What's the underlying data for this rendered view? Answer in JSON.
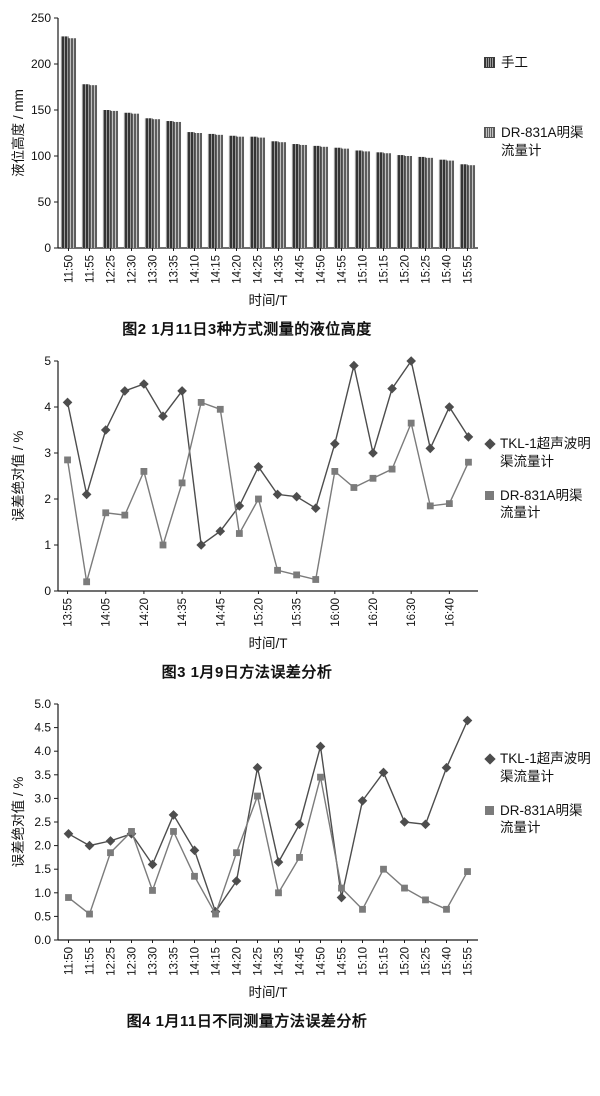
{
  "chart_data": [
    {
      "type": "bar",
      "caption": "图2  1月11日3种方式测量的液位高度",
      "ylabel": "液位高度 / mm",
      "xlabel": "时间/T",
      "ylim": [
        0,
        250
      ],
      "yticks": [
        0,
        50,
        100,
        150,
        200,
        250
      ],
      "ytick_labels": [
        "0",
        "50",
        "100",
        "150",
        "200",
        "250"
      ],
      "grid": false,
      "legend_position": "right",
      "categories": [
        "11:50",
        "11:55",
        "12:25",
        "12:30",
        "13:30",
        "13:35",
        "14:10",
        "14:15",
        "14:20",
        "14:25",
        "14:35",
        "14:45",
        "14:50",
        "14:55",
        "15:10",
        "15:15",
        "15:20",
        "15:25",
        "15:40",
        "15:55"
      ],
      "series": [
        {
          "name": "手工",
          "marker": "hatch-dark",
          "values": [
            230,
            178,
            150,
            147,
            141,
            138,
            126,
            124,
            122,
            121,
            116,
            113,
            111,
            109,
            106,
            104,
            101,
            99,
            96,
            91
          ]
        },
        {
          "name": "DR-831A明渠流量计",
          "marker": "hatch-light",
          "values": [
            228,
            177,
            149,
            146,
            140,
            137,
            125,
            123,
            121,
            120,
            115,
            112,
            110,
            108,
            105,
            103,
            100,
            98,
            95,
            90
          ]
        }
      ]
    },
    {
      "type": "line",
      "caption": "图3  1月9日方法误差分析",
      "ylabel": "误差绝对值 / %",
      "xlabel": "时间/T",
      "ylim": [
        0,
        5
      ],
      "yticks": [
        0,
        1,
        2,
        3,
        4,
        5
      ],
      "ytick_labels": [
        "0",
        "1",
        "2",
        "3",
        "4",
        "5"
      ],
      "grid": false,
      "legend_position": "right",
      "categories": [
        "13:55",
        "",
        "14:05",
        "",
        "14:20",
        "",
        "14:35",
        "",
        "14:45",
        "",
        "15:20",
        "",
        "15:35",
        "",
        "16:00",
        "",
        "16:20",
        "",
        "16:30",
        "",
        "16:40",
        ""
      ],
      "series": [
        {
          "name": "TKL-1超声波明渠流量计",
          "marker": "diamond",
          "color": "#4d4d4d",
          "values": [
            4.1,
            2.1,
            3.5,
            4.35,
            4.5,
            3.8,
            4.35,
            1.0,
            1.3,
            1.85,
            2.7,
            2.1,
            2.05,
            1.8,
            3.2,
            4.9,
            3.0,
            4.4,
            5.0,
            3.1,
            4.0,
            3.35
          ]
        },
        {
          "name": "DR-831A明渠流量计",
          "marker": "square",
          "color": "#7b7b7b",
          "values": [
            2.85,
            0.2,
            1.7,
            1.65,
            2.6,
            1.0,
            2.35,
            4.1,
            3.95,
            1.25,
            2.0,
            0.45,
            0.35,
            0.25,
            2.6,
            2.25,
            2.45,
            2.65,
            3.65,
            1.85,
            1.9,
            2.8
          ]
        }
      ]
    },
    {
      "type": "line",
      "caption": "图4  1月11日不同测量方法误差分析",
      "ylabel": "误差绝对值 / %",
      "xlabel": "时间/T",
      "ylim": [
        0,
        5
      ],
      "yticks": [
        0,
        0.5,
        1,
        1.5,
        2,
        2.5,
        3,
        3.5,
        4,
        4.5,
        5
      ],
      "ytick_labels": [
        "0.0",
        "0.5",
        "1.0",
        "1.5",
        "2.0",
        "2.5",
        "3.0",
        "3.5",
        "4.0",
        "4.5",
        "5.0"
      ],
      "grid": false,
      "legend_position": "right",
      "categories": [
        "11:50",
        "11:55",
        "12:25",
        "12:30",
        "13:30",
        "13:35",
        "14:10",
        "14:15",
        "14:20",
        "14:25",
        "14:35",
        "14:45",
        "14:50",
        "14:55",
        "15:10",
        "15:15",
        "15:20",
        "15:25",
        "15:40",
        "15:55"
      ],
      "series": [
        {
          "name": "TKL-1超声波明渠流量计",
          "marker": "diamond",
          "color": "#4d4d4d",
          "values": [
            2.25,
            2.0,
            2.1,
            2.25,
            1.6,
            2.65,
            1.9,
            0.6,
            1.25,
            3.65,
            1.65,
            2.45,
            4.1,
            0.9,
            2.95,
            3.55,
            2.5,
            2.45,
            3.65,
            4.65
          ]
        },
        {
          "name": "DR-831A明渠流量计",
          "marker": "square",
          "color": "#7b7b7b",
          "values": [
            0.9,
            0.55,
            1.85,
            2.3,
            1.05,
            2.3,
            1.35,
            0.55,
            1.85,
            3.05,
            1.0,
            1.75,
            3.45,
            1.1,
            0.65,
            1.5,
            1.1,
            0.85,
            0.65,
            1.45
          ]
        }
      ]
    }
  ],
  "colors": {
    "axis": "#1a1a1a",
    "bar_dark_base": "#343434",
    "bar_dark_line": "#9a9a9a",
    "bar_light_base": "#5e5e5e",
    "bar_light_line": "#c2c2c2"
  }
}
